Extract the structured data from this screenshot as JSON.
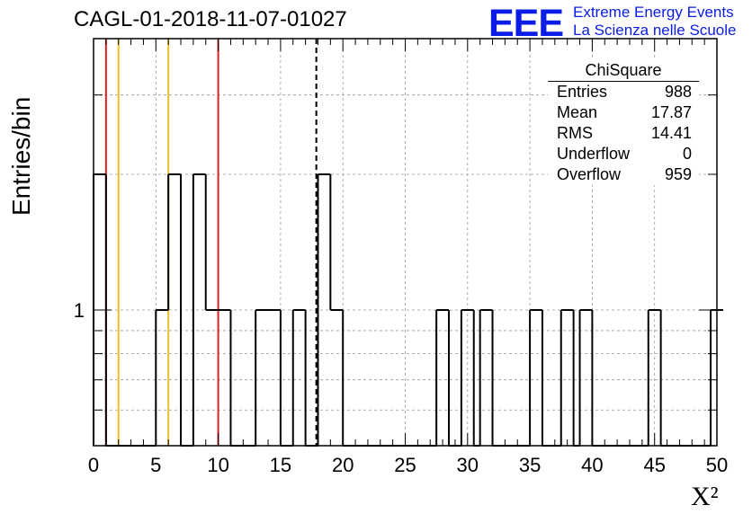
{
  "title": "CAGL-01-2018-11-07-01027",
  "logo": {
    "mark": "EEE",
    "line1": "Extreme Energy Events",
    "line2": "La Scienza nelle Scuole",
    "color": "#0a1ce6"
  },
  "stats_box": {
    "name": "ChiSquare",
    "rows": [
      {
        "label": "Entries",
        "value": "988"
      },
      {
        "label": "Mean",
        "value": "17.87"
      },
      {
        "label": "RMS",
        "value": "14.41"
      },
      {
        "label": "Underflow",
        "value": "0"
      },
      {
        "label": "Overflow",
        "value": "959"
      }
    ]
  },
  "chart_data": {
    "type": "bar",
    "histogram": true,
    "log_y": true,
    "ylim": [
      0.5,
      4
    ],
    "xlim": [
      0,
      50
    ],
    "bin_width": 1,
    "bins": [
      {
        "x0": 0,
        "count": 2
      },
      {
        "x0": 1,
        "count": 0
      },
      {
        "x0": 2,
        "count": 0
      },
      {
        "x0": 5,
        "count": 1
      },
      {
        "x0": 6,
        "count": 2
      },
      {
        "x0": 7,
        "count": 0
      },
      {
        "x0": 8,
        "count": 2
      },
      {
        "x0": 9,
        "count": 1
      },
      {
        "x0": 10,
        "count": 1
      },
      {
        "x0": 11,
        "count": 0
      },
      {
        "x0": 13,
        "count": 1
      },
      {
        "x0": 14,
        "count": 1
      },
      {
        "x0": 15,
        "count": 0
      },
      {
        "x0": 16,
        "count": 1
      },
      {
        "x0": 17,
        "count": 0
      },
      {
        "x0": 18,
        "count": 2
      },
      {
        "x0": 19,
        "count": 1
      },
      {
        "x0": 20,
        "count": 0
      },
      {
        "x0": 27.5,
        "count": 1
      },
      {
        "x0": 28.5,
        "count": 0
      },
      {
        "x0": 29.5,
        "count": 1
      },
      {
        "x0": 30.5,
        "count": 0
      },
      {
        "x0": 31,
        "count": 1
      },
      {
        "x0": 32,
        "count": 0
      },
      {
        "x0": 35,
        "count": 1
      },
      {
        "x0": 36,
        "count": 0
      },
      {
        "x0": 37.5,
        "count": 1
      },
      {
        "x0": 38.5,
        "count": 0
      },
      {
        "x0": 39,
        "count": 1
      },
      {
        "x0": 40,
        "count": 0
      },
      {
        "x0": 44.5,
        "count": 1
      },
      {
        "x0": 45.5,
        "count": 0
      },
      {
        "x0": 49.5,
        "count": 1
      }
    ],
    "first_bin_peak": 2,
    "x_ticks": [
      "0",
      "5",
      "10",
      "15",
      "20",
      "25",
      "30",
      "35",
      "40",
      "45",
      "50"
    ],
    "x_tick_values": [
      0,
      5,
      10,
      15,
      20,
      25,
      30,
      35,
      40,
      45,
      50
    ],
    "y_tick_label": "1",
    "xlabel": "X²",
    "ylabel": "Entries/bin",
    "grid": true,
    "reference_lines": [
      {
        "x": 1,
        "color": "#e02020",
        "style": "solid"
      },
      {
        "x": 2,
        "color": "#f0c020",
        "style": "solid"
      },
      {
        "x": 6,
        "color": "#f0c020",
        "style": "solid"
      },
      {
        "x": 10,
        "color": "#e02020",
        "style": "solid"
      },
      {
        "x": 17.87,
        "color": "#000000",
        "style": "dashed"
      }
    ]
  }
}
